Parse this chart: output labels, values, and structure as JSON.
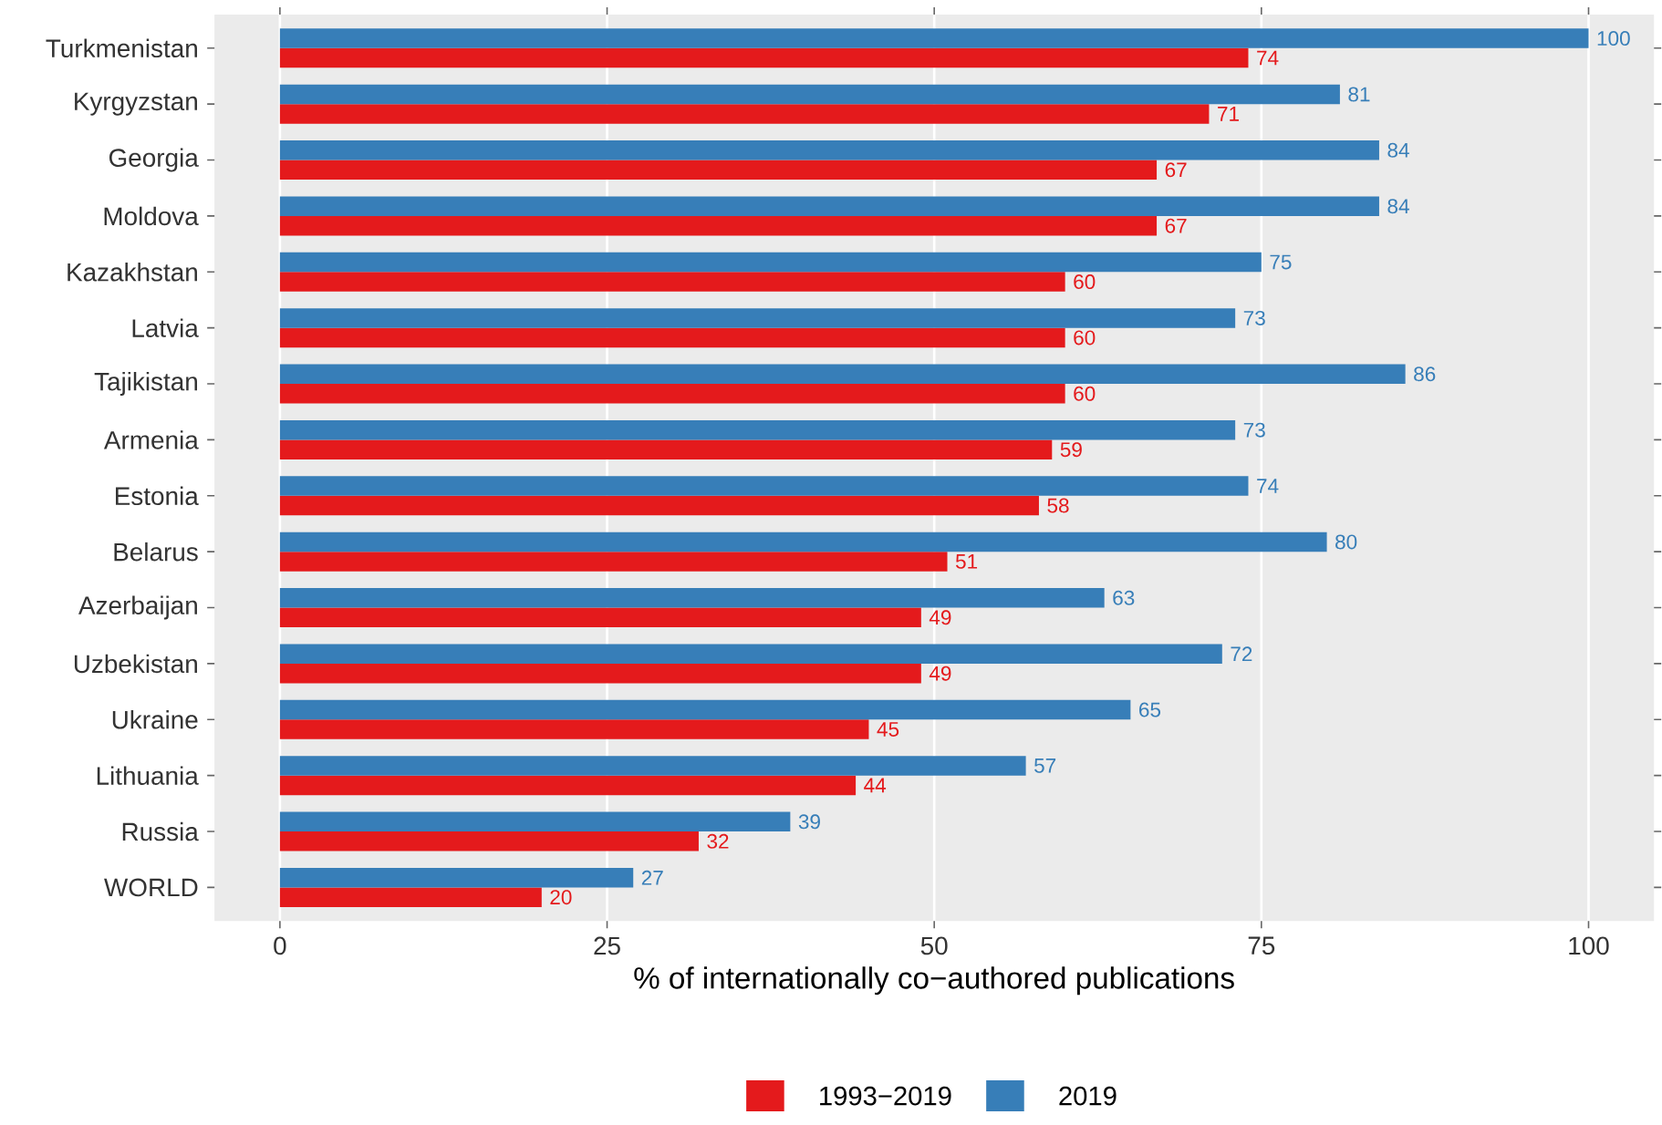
{
  "chart_data": {
    "type": "bar",
    "orientation": "horizontal",
    "xlabel": "% of internationally co−authored publications",
    "categories": [
      "Turkmenistan",
      "Kyrgyzstan",
      "Georgia",
      "Moldova",
      "Kazakhstan",
      "Latvia",
      "Tajikistan",
      "Armenia",
      "Estonia",
      "Belarus",
      "Azerbaijan",
      "Uzbekistan",
      "Ukraine",
      "Lithuania",
      "Russia",
      "WORLD"
    ],
    "series": [
      {
        "name": "1993−2019",
        "color": "#e41a1c",
        "values": [
          74,
          71,
          67,
          67,
          60,
          60,
          60,
          59,
          58,
          51,
          49,
          49,
          45,
          44,
          32,
          20
        ]
      },
      {
        "name": "2019",
        "color": "#377eb8",
        "values": [
          100,
          81,
          84,
          84,
          75,
          73,
          86,
          73,
          74,
          80,
          63,
          72,
          65,
          57,
          39,
          27
        ]
      }
    ],
    "xlim": [
      -5,
      105
    ],
    "xticks": [
      0,
      25,
      50,
      75,
      100
    ],
    "grid": "x",
    "legend": "bottom",
    "data_labels": true
  }
}
